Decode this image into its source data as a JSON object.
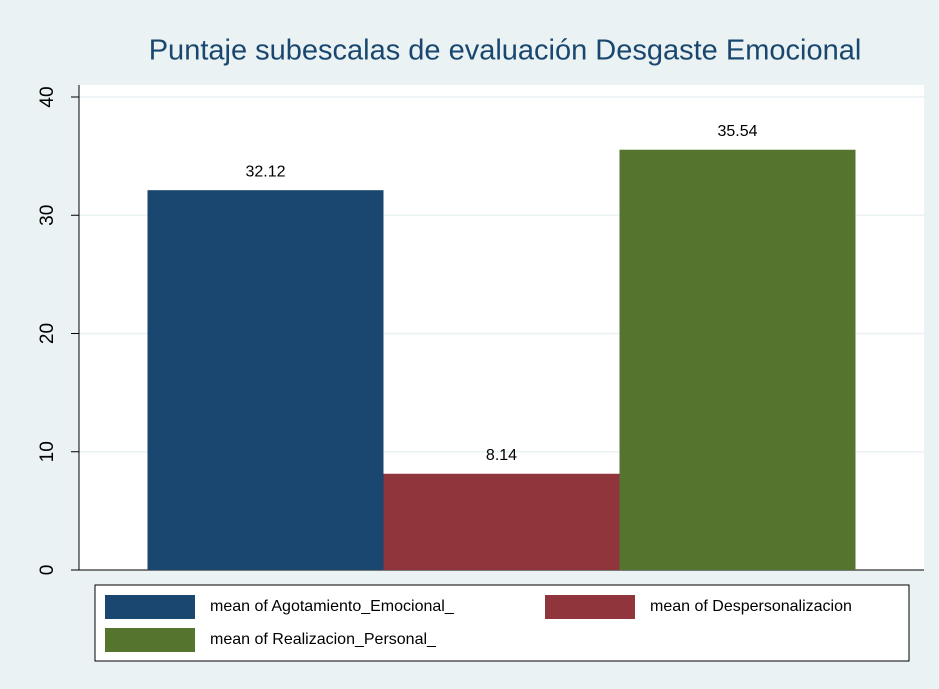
{
  "chart_data": {
    "type": "bar",
    "title": "Puntaje subescalas de evaluación Desgaste Emocional",
    "categories": [
      null
    ],
    "series": [
      {
        "name": "mean of Agotamiento_Emocional_",
        "color": "#1a476f",
        "values": [
          32.12
        ]
      },
      {
        "name": "mean of Despersonalizacion",
        "color": "#90353b",
        "values": [
          8.14
        ]
      },
      {
        "name": "mean of Realizacion_Personal_",
        "color": "#55752f",
        "values": [
          35.54
        ]
      }
    ],
    "ylim": [
      0,
      40
    ],
    "yticks": [
      0,
      10,
      20,
      30,
      40
    ],
    "grid": true,
    "value_labels_shown": true
  }
}
